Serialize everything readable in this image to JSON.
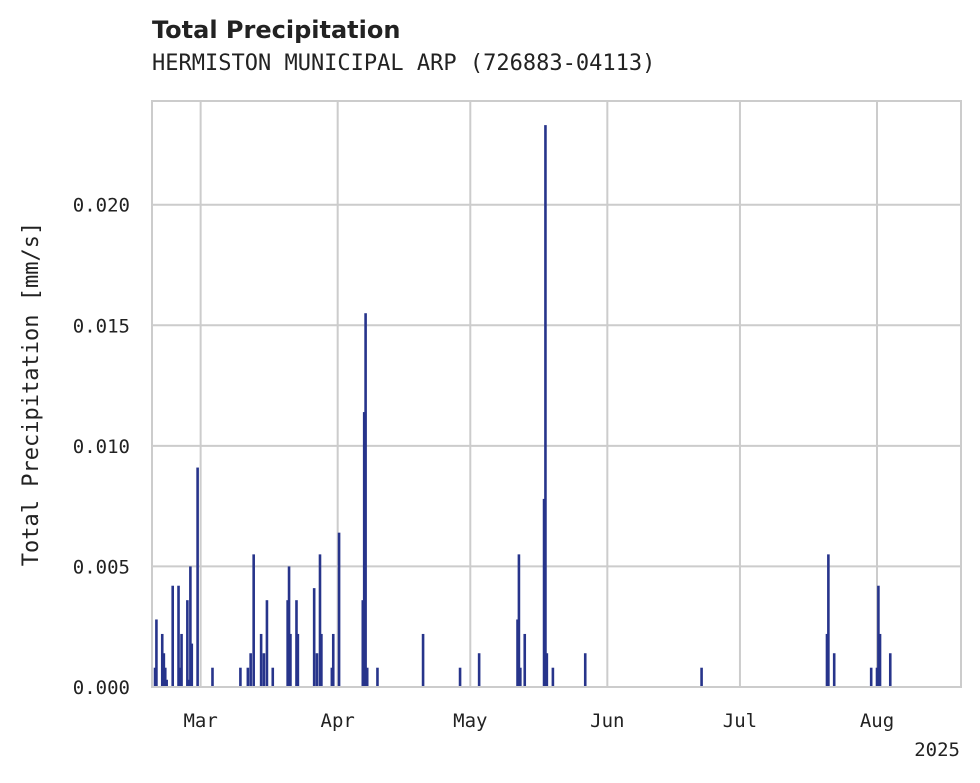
{
  "title": "Total Precipitation",
  "subtitle": "HERMISTON MUNICIPAL ARP (726883-04113)",
  "chart_data": {
    "type": "bar",
    "title": "Total Precipitation",
    "subtitle": "HERMISTON MUNICIPAL ARP (726883-04113)",
    "xlabel": "",
    "ylabel": "Total Precipitation [mm/s]",
    "xlim": [
      "2025-02-18",
      "2025-08-20"
    ],
    "ylim": [
      0,
      0.0243
    ],
    "xticks": [
      {
        "date": "2025-03-01",
        "label": "Mar"
      },
      {
        "date": "2025-04-01",
        "label": "Apr"
      },
      {
        "date": "2025-05-01",
        "label": "May"
      },
      {
        "date": "2025-06-01",
        "label": "Jun"
      },
      {
        "date": "2025-07-01",
        "label": "Jul"
      },
      {
        "date": "2025-08-01",
        "label": "Aug"
      }
    ],
    "xtick_year": "2025",
    "yticks": [
      0.0,
      0.005,
      0.01,
      0.015,
      0.02
    ],
    "ytick_labels": [
      "0.000",
      "0.005",
      "0.010",
      "0.015",
      "0.020"
    ],
    "grid": true,
    "bar_color": "#27348b",
    "series": [
      {
        "x": [
          "2025-02-19",
          "2025-02-19",
          "2025-02-20",
          "2025-02-21",
          "2025-02-21",
          "2025-02-21",
          "2025-02-23",
          "2025-02-24",
          "2025-02-24",
          "2025-02-25",
          "2025-02-26",
          "2025-02-26",
          "2025-02-27",
          "2025-02-27",
          "2025-02-28",
          "2025-03-04",
          "2025-03-10",
          "2025-03-12",
          "2025-03-12",
          "2025-03-13",
          "2025-03-15",
          "2025-03-15",
          "2025-03-16",
          "2025-03-17",
          "2025-03-21",
          "2025-03-21",
          "2025-03-21",
          "2025-03-23",
          "2025-03-23",
          "2025-03-27",
          "2025-03-27",
          "2025-03-28",
          "2025-03-28",
          "2025-03-31",
          "2025-03-31",
          "2025-04-01",
          "2025-04-07",
          "2025-04-07",
          "2025-04-07",
          "2025-04-08",
          "2025-04-10",
          "2025-04-20",
          "2025-04-29",
          "2025-05-03",
          "2025-05-12",
          "2025-05-12",
          "2025-05-12",
          "2025-05-13",
          "2025-05-18",
          "2025-05-18",
          "2025-05-18",
          "2025-05-20",
          "2025-05-27",
          "2025-06-22",
          "2025-07-21",
          "2025-07-21",
          "2025-07-22",
          "2025-07-31",
          "2025-08-01",
          "2025-08-01",
          "2025-08-02",
          "2025-08-04"
        ],
        "values": [
          0.0008,
          0.0028,
          0.0022,
          0.0014,
          0.0008,
          0.0003,
          0.0042,
          0.0042,
          0.0008,
          0.0022,
          0.0036,
          0.0003,
          0.005,
          0.0018,
          0.0091,
          0.0008,
          0.0008,
          0.0014,
          0.0008,
          0.0055,
          0.0014,
          0.0022,
          0.0036,
          0.0008,
          0.0036,
          0.005,
          0.0022,
          0.0036,
          0.0022,
          0.0014,
          0.0041,
          0.0055,
          0.0022,
          0.0008,
          0.0022,
          0.0064,
          0.0036,
          0.0114,
          0.0155,
          0.0008,
          0.0008,
          0.0022,
          0.0008,
          0.0014,
          0.0008,
          0.0028,
          0.0055,
          0.0022,
          0.0078,
          0.0233,
          0.0014,
          0.0008,
          0.0014,
          0.0008,
          0.0022,
          0.0055,
          0.0014,
          0.0008,
          0.0008,
          0.0042,
          0.0022,
          0.0014
        ]
      }
    ]
  }
}
